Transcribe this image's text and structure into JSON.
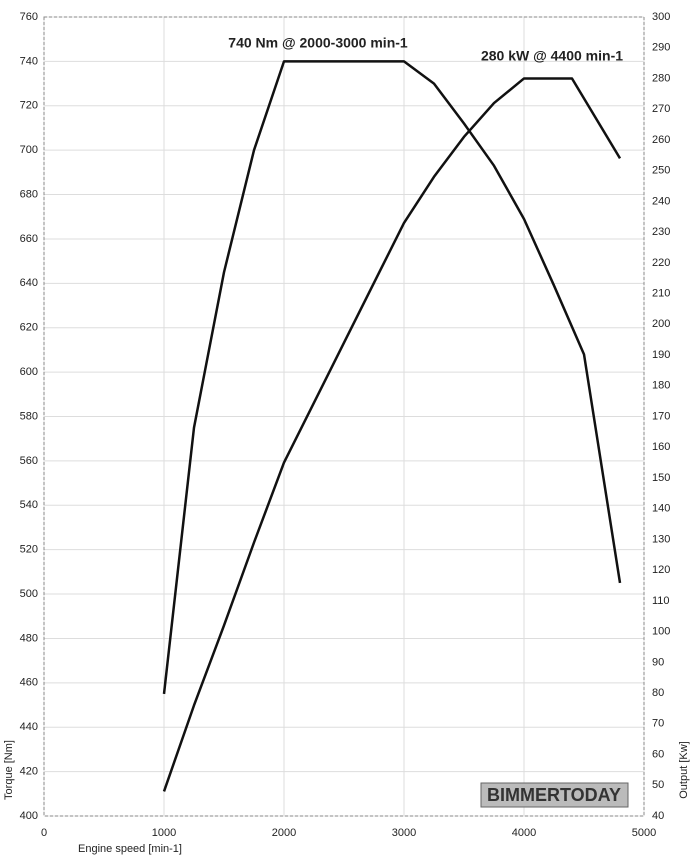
{
  "chart_data": {
    "type": "line",
    "annotations": [
      "740 Nm @ 2000-3000 min-1",
      "280 kW @ 4400 min-1"
    ],
    "watermark": "BIMMERTODAY",
    "x_label": "Engine speed [min-1]",
    "y_label": "Torque [Nm]",
    "y2_label": "Output [Kw]",
    "xlim": [
      0,
      5000
    ],
    "xticks": [
      0,
      1000,
      2000,
      3000,
      4000,
      5000
    ],
    "ylim": [
      400,
      760
    ],
    "yticks": [
      400,
      420,
      440,
      460,
      480,
      500,
      520,
      540,
      560,
      580,
      600,
      620,
      640,
      660,
      680,
      700,
      720,
      740,
      760
    ],
    "y2lim": [
      40,
      300
    ],
    "y2ticks": [
      40,
      50,
      60,
      70,
      80,
      90,
      100,
      110,
      120,
      130,
      140,
      150,
      160,
      170,
      180,
      190,
      200,
      210,
      220,
      230,
      240,
      250,
      260,
      270,
      280,
      290,
      300
    ],
    "grid": true,
    "series": [
      {
        "color": "#111111",
        "x": [
          1000,
          1250,
          1500,
          1750,
          2000,
          3000,
          3250,
          3500,
          3750,
          4000,
          4250,
          4500,
          4800
        ],
        "values": [
          455,
          575,
          645,
          700,
          740,
          740,
          730,
          712,
          693,
          669,
          639,
          608,
          505
        ]
      },
      {
        "color": "#111111",
        "axis": "y2",
        "x": [
          1000,
          1250,
          1500,
          1750,
          2000,
          2500,
          3000,
          3250,
          3500,
          3750,
          4000,
          4400,
          4800
        ],
        "values": [
          48,
          76,
          102,
          129,
          155,
          194,
          233,
          248,
          261,
          272,
          280,
          280,
          254
        ]
      }
    ]
  }
}
